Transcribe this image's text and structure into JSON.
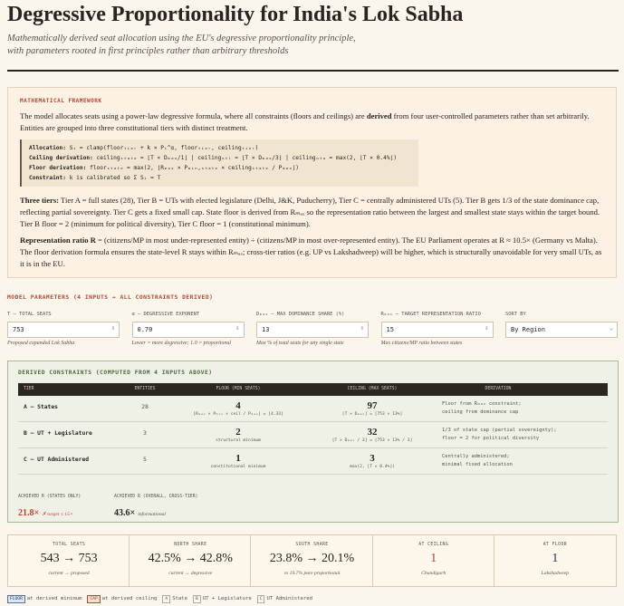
{
  "header": {
    "title": "Degressive Proportionality for India's Lok Sabha",
    "subtitle": [
      "Mathematically derived seat allocation using the EU's degressive proportionality principle,",
      "with parameters rooted in first principles rather than arbitrary thresholds"
    ]
  },
  "framework": {
    "label": "MATHEMATICAL FRAMEWORK",
    "intro": [
      "The model allocates seats using a power-law degressive formula, where all constraints (floors and ceilings) are ",
      "derived",
      " from four user-controlled parameters rather than set arbitrarily. Entities are grouped into three constitutional tiers with distinct treatment."
    ],
    "formulas": [
      {
        "term": "Allocation:",
        "text": " Sᵢ = clamp(floorₜᵢₑᵣ + k × Pᵢ^α, floorₜᵢₑᵣ, ceilingₜᵢₑᵣ)"
      },
      {
        "term": "Ceiling derivation:",
        "text": " ceilingₛₜₐₜₑ = ⌊T × Dₘₐₓ/1⌋  |  ceilingᵤₜₗ = ⌊T × Dₘₐₓ/3⌋  |  ceilingᵤₜₐ = max(2, ⌊T × 0.4%⌋)"
      },
      {
        "term": "Floor derivation:",
        "text": " floorₛₜₐₜₑ = max(2, ⌊Rₘₐₓ × Pₘᵢₙ,ₛₜₐₜₑ × ceilingₛₜₐₜₑ / Pₘₐₓ⌋)"
      },
      {
        "term": "Constraint:",
        "text": " k is calibrated so Σ Sᵢ = T"
      }
    ],
    "tiers": {
      "term": "Three tiers:",
      "text": " Tier A = full states (28), Tier B = UTs with elected legislature (Delhi, J&K, Puducherry), Tier C = centrally administered UTs (5). Tier B gets 1/3 of the state dominance cap, reflecting partial sovereignty. Tier C gets a fixed small cap. State floor is derived from Rₘₐₓ so the representation ratio between the largest and smallest state stays within the target bound. Tier B floor = 2 (minimum for political diversity), Tier C floor = 1 (constitutional minimum)."
    },
    "ratio": {
      "term": "Representation ratio R",
      "text": " = (citizens/MP in most under-represented entity) ÷ (citizens/MP in most over-represented entity). The EU Parliament operates at R ≈ 10.5× (Germany vs Malta). The floor derivation formula ensures the state-level R stays within Rₘₐₓ; cross-tier ratios (e.g. UP vs Lakshadweep) will be higher, which is structurally unavoidable for very small UTs, as it is in the EU."
    }
  },
  "parameters": {
    "heading": "MODEL PARAMETERS (4 INPUTS → ALL CONSTRAINTS DERIVED)",
    "fields": [
      {
        "label": "T — TOTAL SEATS",
        "value": "753",
        "help": "Proposed expanded Lok Sabha"
      },
      {
        "label": "α — DEGRESSIVE EXPONENT",
        "value": "0.70",
        "help": "Lower = more degressive; 1.0 = proportional"
      },
      {
        "label": "Dₘₐₓ — MAX DOMINANCE SHARE (%)",
        "value": "13",
        "help": "Max % of total seats for any single state"
      },
      {
        "label": "Rₘₐₓ — TARGET REPRESENTATION RATIO",
        "value": "15",
        "help": "Max citizens/MP ratio between states"
      },
      {
        "label": "SORT BY",
        "value": "By Region"
      }
    ]
  },
  "constraints": {
    "heading": "DERIVED CONSTRAINTS (COMPUTED FROM 4 INPUTS ABOVE)",
    "columns": [
      "TIER",
      "ENTITIES",
      "FLOOR (MIN SEATS)",
      "CEILING (MAX SEATS)",
      "DERIVATION"
    ],
    "rows": [
      {
        "tier": "A — States",
        "entities": 28,
        "floor": 4,
        "floor_note": "⌊Rₘₐₓ × Pₘᵢₙ × ceil / Pₘₐₓ⌋ = ⌊4.33⌋",
        "ceiling": 97,
        "ceiling_note": "⌊T × Dₘₐₓ⌋ = ⌊753 × 13%⌋",
        "derivation": [
          "Floor from Rₘₐₓ constraint;",
          "ceiling from dominance cap"
        ]
      },
      {
        "tier": "B — UT + Legislature",
        "entities": 3,
        "floor": 2,
        "floor_note": "structural minimum",
        "ceiling": 32,
        "ceiling_note": "⌊T × Dₘₐₓ / 3⌋ = ⌊753 × 13% / 3⌋",
        "derivation": [
          "1/3 of state cap (partial sovereignty);",
          "floor = 2 for political diversity"
        ]
      },
      {
        "tier": "C — UT Administered",
        "entities": 5,
        "floor": 1,
        "floor_note": "constitutional minimum",
        "ceiling": 3,
        "ceiling_note": "max(2, ⌊T × 0.4%⌋)",
        "derivation": [
          "Centrally administered;",
          "minimal fixed allocation"
        ]
      }
    ],
    "achieved": [
      {
        "label": "ACHIEVED R (STATES ONLY)",
        "value": "21.8×",
        "note": "✗ target ≤ 15×"
      },
      {
        "label": "ACHIEVED R (OVERALL, CROSS-TIER)",
        "value": "43.6×",
        "note": "informational"
      }
    ]
  },
  "summary": [
    {
      "label": "TOTAL SEATS",
      "value": "543 → 753",
      "note": "current → proposed"
    },
    {
      "label": "NORTH SHARE",
      "value": "42.5% → 42.8%",
      "note": "current → degressive"
    },
    {
      "label": "SOUTH SHARE",
      "value": "23.8% → 20.1%",
      "note": "vs 19.7% pure proportional"
    },
    {
      "label": "AT CEILING",
      "value": "1",
      "note": "Chandigarh"
    },
    {
      "label": "AT FLOOR",
      "value": "1",
      "note": "Lakshadweep"
    }
  ],
  "legend": [
    {
      "badge": "FLOOR",
      "text": "at derived minimum"
    },
    {
      "badge": "CAP",
      "text": "at derived ceiling"
    },
    {
      "badge": "A",
      "text": "State"
    },
    {
      "badge": "B",
      "text": "UT + Legislature"
    },
    {
      "badge": "C",
      "text": "UT Administered"
    }
  ]
}
